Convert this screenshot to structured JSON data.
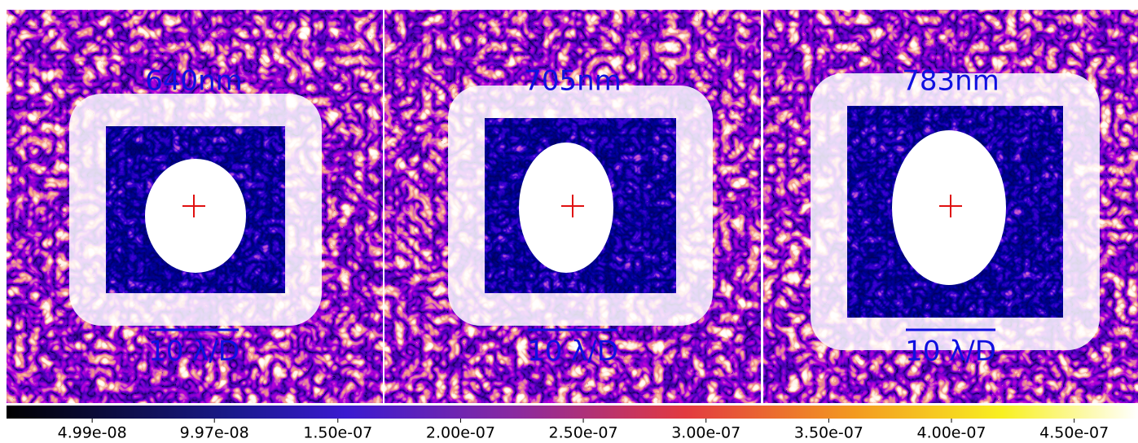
{
  "panels": [
    {
      "wavelength": "640nm",
      "scale": "10 λ/D"
    },
    {
      "wavelength": "705nm",
      "scale": "10 λ/D"
    },
    {
      "wavelength": "783nm",
      "scale": "10 λ/D"
    }
  ],
  "colorbar": {
    "lim": [
      1.5e-08,
      4.76e-07
    ],
    "ticks": [
      {
        "value": 4.99e-08,
        "label": "4.99e-08"
      },
      {
        "value": 9.97e-08,
        "label": "9.97e-08"
      },
      {
        "value": 1.5e-07,
        "label": "1.50e-07"
      },
      {
        "value": 2e-07,
        "label": "2.00e-07"
      },
      {
        "value": 2.5e-07,
        "label": "2.50e-07"
      },
      {
        "value": 3e-07,
        "label": "3.00e-07"
      },
      {
        "value": 3.5e-07,
        "label": "3.50e-07"
      },
      {
        "value": 4e-07,
        "label": "4.00e-07"
      },
      {
        "value": 4.5e-07,
        "label": "4.50e-07"
      }
    ]
  }
}
